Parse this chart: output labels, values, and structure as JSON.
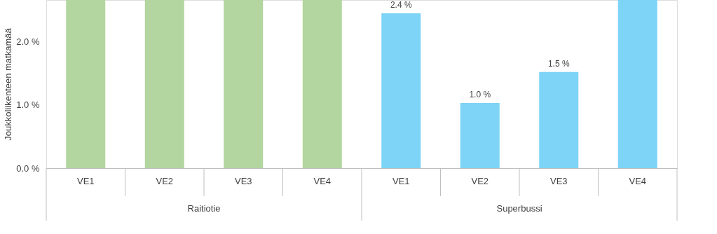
{
  "chart_data": {
    "type": "bar",
    "ylabel": "Joukkoliikenteen matkamää",
    "categories": [
      "VE1",
      "VE2",
      "VE3",
      "VE4",
      "VE1",
      "VE2",
      "VE3",
      "VE4"
    ],
    "values": [
      2.66,
      2.66,
      2.66,
      2.66,
      2.45,
      1.03,
      1.52,
      2.66
    ],
    "colors": [
      "#b3d59f",
      "#b3d59f",
      "#b3d59f",
      "#b3d59f",
      "#7dd4f6",
      "#7dd4f6",
      "#7dd4f6",
      "#7dd4f6"
    ],
    "value_labels": [
      null,
      null,
      null,
      null,
      "2.4 %",
      "1.0 %",
      "1.5 %",
      null
    ],
    "ylim": [
      0,
      2.66
    ],
    "yticks": [
      {
        "value": 0,
        "label": "0.0 %"
      },
      {
        "value": 1,
        "label": "1.0 %"
      },
      {
        "value": 2,
        "label": "2.0 %"
      }
    ],
    "annotations": [
      "Raitiotie",
      "Superbussi"
    ],
    "grid": false
  }
}
